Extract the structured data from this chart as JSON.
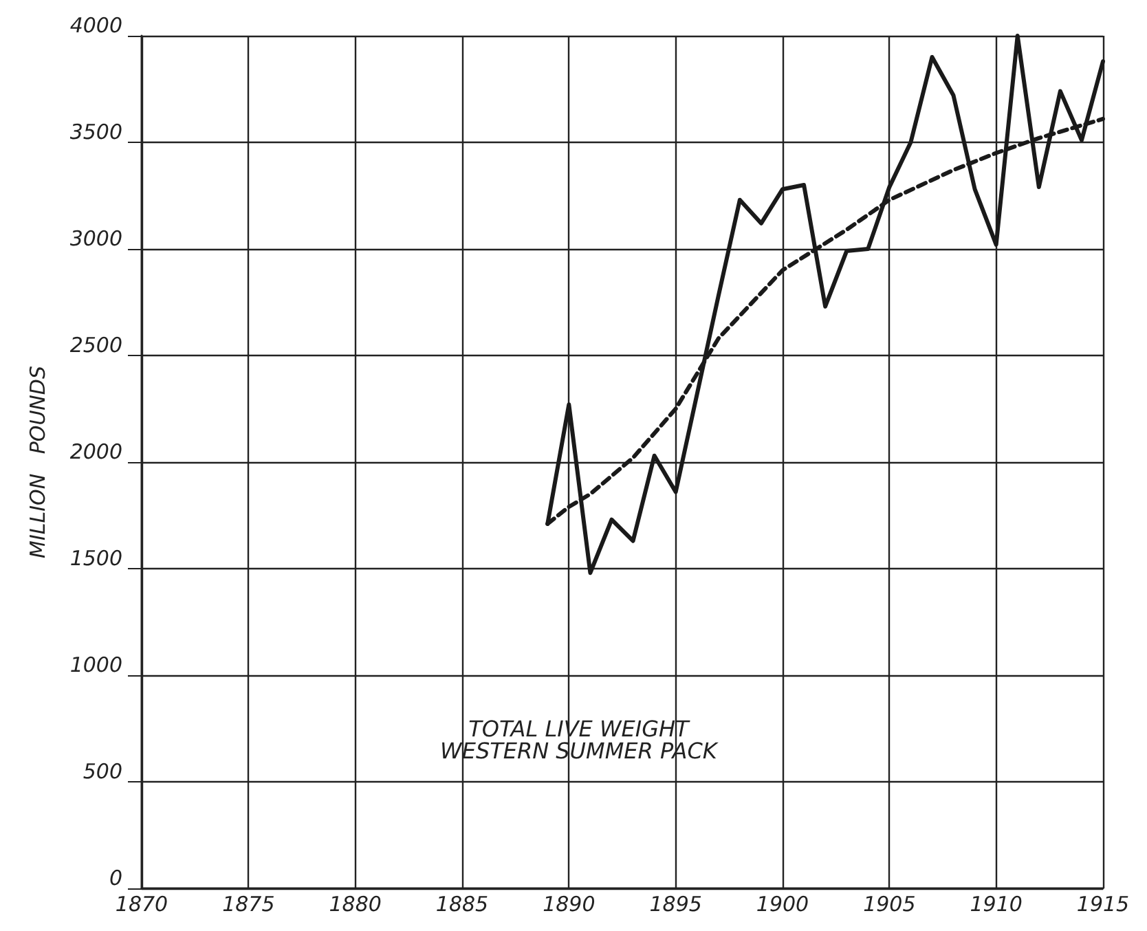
{
  "chart_data": {
    "type": "line",
    "ylabel": "MILLION   POUNDS",
    "annotations": [
      "TOTAL LIVE WEIGHT\nWESTERN SUMMER PACK"
    ],
    "series": [
      {
        "color": "#1a1a1a",
        "line_style": "solid",
        "x": [
          1889,
          1890,
          1891,
          1892,
          1893,
          1894,
          1895,
          1896,
          1897,
          1898,
          1899,
          1900,
          1901,
          1902,
          1903,
          1904,
          1905,
          1906,
          1907,
          1908,
          1909,
          1910,
          1911,
          1912,
          1913,
          1914,
          1915
        ],
        "values": [
          1710,
          2270,
          1480,
          1730,
          1630,
          2030,
          1860,
          2320,
          2780,
          3230,
          3120,
          3280,
          3300,
          2730,
          2990,
          3000,
          3290,
          3500,
          3900,
          3720,
          3280,
          3020,
          4000,
          3290,
          3740,
          3510,
          3880
        ]
      },
      {
        "type": "line",
        "color": "#1a1a1a",
        "line_style": "dashed",
        "x": [
          1889,
          1890,
          1891,
          1893,
          1895,
          1897,
          1900,
          1903,
          1905,
          1908,
          1910,
          1912,
          1915
        ],
        "values": [
          1710,
          1790,
          1850,
          2020,
          2250,
          2580,
          2900,
          3090,
          3230,
          3370,
          3450,
          3520,
          3610
        ]
      }
    ],
    "xlim": [
      1870,
      1915
    ],
    "xticks": [
      1870,
      1875,
      1880,
      1885,
      1890,
      1895,
      1900,
      1905,
      1910,
      1915
    ],
    "ylim": [
      0,
      4000
    ],
    "yticks": [
      0,
      500,
      1000,
      1500,
      2000,
      2500,
      3000,
      3500,
      4000
    ],
    "grid": true,
    "marker": "none"
  }
}
